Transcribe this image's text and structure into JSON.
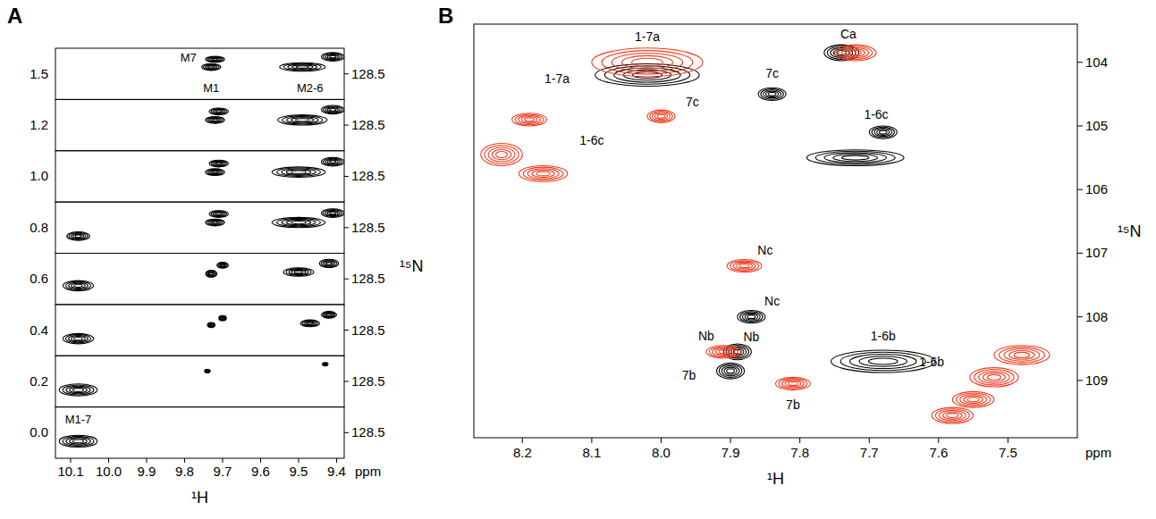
{
  "chart_data": [
    {
      "type": "contour",
      "title": "A",
      "x_label": "¹H",
      "x_unit": "ppm",
      "y_label": "¹⁵N",
      "color": "#000000",
      "xlim": [
        10.14,
        9.38
      ],
      "xticks": [
        10.1,
        {
          "value": 10,
          "label": "10.0"
        },
        9.9,
        9.8,
        9.7,
        9.6,
        9.5,
        9.4
      ],
      "ylim": [
        128.2,
        128.8
      ],
      "yticks": [
        128.5
      ],
      "categories": [
        "0.0",
        "0.2",
        "0.4",
        "0.6",
        "0.8",
        "1.0",
        "1.2",
        "1.5"
      ],
      "strips": [
        {
          "x": [
            10.08
          ],
          "y": [
            128.6
          ],
          "x_width": [
            0.1
          ],
          "y_width": [
            0.14
          ]
        },
        {
          "x": [
            10.08,
            9.74,
            9.43
          ],
          "y": [
            128.6,
            128.38,
            128.3
          ],
          "x_width": [
            0.1,
            0.015,
            0.015
          ],
          "y_width": [
            0.14,
            0.04,
            0.04
          ]
        },
        {
          "x": [
            10.08,
            9.73,
            9.7,
            9.47,
            9.42
          ],
          "y": [
            128.6,
            128.44,
            128.36,
            128.42,
            128.32
          ],
          "x_width": [
            0.08,
            0.02,
            0.02,
            0.05,
            0.04
          ],
          "y_width": [
            0.12,
            0.06,
            0.06,
            0.08,
            0.08
          ]
        },
        {
          "x": [
            10.08,
            9.73,
            9.7,
            9.5,
            9.42
          ],
          "y": [
            128.58,
            128.44,
            128.34,
            128.42,
            128.32
          ],
          "x_width": [
            0.08,
            0.03,
            0.03,
            0.08,
            0.05
          ],
          "y_width": [
            0.12,
            0.08,
            0.07,
            0.1,
            0.1
          ]
        },
        {
          "x": [
            10.08,
            9.72,
            9.71,
            9.5,
            9.41
          ],
          "y": [
            128.6,
            128.44,
            128.34,
            128.44,
            128.33
          ],
          "x_width": [
            0.06,
            0.05,
            0.05,
            0.14,
            0.06
          ],
          "y_width": [
            0.1,
            0.08,
            0.08,
            0.12,
            0.1
          ]
        },
        {
          "x": [
            9.72,
            9.71,
            9.5,
            9.41
          ],
          "y": [
            128.45,
            128.35,
            128.45,
            128.33
          ],
          "x_width": [
            0.05,
            0.05,
            0.14,
            0.06
          ],
          "y_width": [
            0.08,
            0.08,
            0.12,
            0.1
          ]
        },
        {
          "x": [
            9.72,
            9.71,
            9.49,
            9.41
          ],
          "y": [
            128.44,
            128.34,
            128.44,
            128.32
          ],
          "x_width": [
            0.05,
            0.05,
            0.13,
            0.06
          ],
          "y_width": [
            0.08,
            0.08,
            0.12,
            0.1
          ]
        },
        {
          "x": [
            9.73,
            9.72,
            9.49,
            9.41
          ],
          "y": [
            128.42,
            128.33,
            128.42,
            128.3
          ],
          "x_width": [
            0.05,
            0.05,
            0.12,
            0.06
          ],
          "y_width": [
            0.08,
            0.07,
            0.1,
            0.1
          ]
        }
      ],
      "annotations": [
        {
          "text": "M1-7",
          "x": 10.08,
          "y": 128.34,
          "strip": 0
        },
        {
          "text": "M7",
          "x": 9.79,
          "y": 128.3,
          "strip": 7
        },
        {
          "text": "M1",
          "x": 9.73,
          "y": 128.66,
          "strip": 7
        },
        {
          "text": "M2-6",
          "x": 9.47,
          "y": 128.66,
          "strip": 7
        }
      ]
    },
    {
      "type": "contour",
      "title": "B",
      "x_label": "¹H",
      "x_unit": "ppm",
      "y_label": "¹⁵N",
      "xlim": [
        8.27,
        7.4
      ],
      "xticks": [
        8.2,
        8.1,
        {
          "value": 8,
          "label": "8.0"
        },
        7.9,
        7.8,
        7.7,
        7.6,
        7.5
      ],
      "ylim": [
        103.4,
        109.9
      ],
      "yticks": [
        104,
        105,
        106,
        107,
        108,
        109
      ],
      "series": [
        {
          "color": "#000000",
          "x": [
            8.02,
            7.74,
            7.84,
            7.68,
            7.72,
            7.87,
            7.89,
            7.9,
            7.68
          ],
          "y": [
            104.2,
            103.85,
            104.5,
            105.1,
            105.5,
            108.0,
            108.55,
            108.85,
            108.7
          ],
          "x_width": [
            0.15,
            0.05,
            0.04,
            0.04,
            0.14,
            0.04,
            0.04,
            0.04,
            0.15
          ],
          "y_width": [
            0.35,
            0.25,
            0.2,
            0.2,
            0.25,
            0.2,
            0.25,
            0.25,
            0.35
          ]
        },
        {
          "color": "#f03c1e",
          "x": [
            8.02,
            7.72,
            8.0,
            8.19,
            8.23,
            8.17,
            7.88,
            7.91,
            7.81,
            7.48,
            7.52,
            7.58,
            7.55
          ],
          "y": [
            104.0,
            103.85,
            104.85,
            104.9,
            105.45,
            105.75,
            107.2,
            108.55,
            109.05,
            108.6,
            108.95,
            109.55,
            109.3
          ],
          "x_width": [
            0.16,
            0.06,
            0.04,
            0.05,
            0.06,
            0.07,
            0.05,
            0.05,
            0.05,
            0.08,
            0.07,
            0.06,
            0.06
          ],
          "y_width": [
            0.45,
            0.25,
            0.2,
            0.2,
            0.35,
            0.25,
            0.2,
            0.2,
            0.2,
            0.3,
            0.3,
            0.25,
            0.25
          ]
        }
      ],
      "annotations": [
        {
          "text": "1-7a",
          "x": 8.02,
          "y": 103.6
        },
        {
          "text": "1-7a",
          "x": 8.15,
          "y": 104.25
        },
        {
          "text": "Ca",
          "x": 7.73,
          "y": 103.55
        },
        {
          "text": "7c",
          "x": 7.84,
          "y": 104.17
        },
        {
          "text": "7c",
          "x": 7.955,
          "y": 104.62
        },
        {
          "text": "1-6c",
          "x": 8.1,
          "y": 105.22
        },
        {
          "text": "1-6c",
          "x": 7.69,
          "y": 104.82
        },
        {
          "text": "Nc",
          "x": 7.85,
          "y": 106.95
        },
        {
          "text": "Nc",
          "x": 7.84,
          "y": 107.75
        },
        {
          "text": "Nb",
          "x": 7.935,
          "y": 108.3
        },
        {
          "text": "Nb",
          "x": 7.87,
          "y": 108.32
        },
        {
          "text": "7b",
          "x": 7.96,
          "y": 108.92
        },
        {
          "text": "7b",
          "x": 7.81,
          "y": 109.38
        },
        {
          "text": "1-6b",
          "x": 7.68,
          "y": 108.3
        },
        {
          "text": "1-6b",
          "x": 7.61,
          "y": 108.7
        }
      ]
    }
  ]
}
